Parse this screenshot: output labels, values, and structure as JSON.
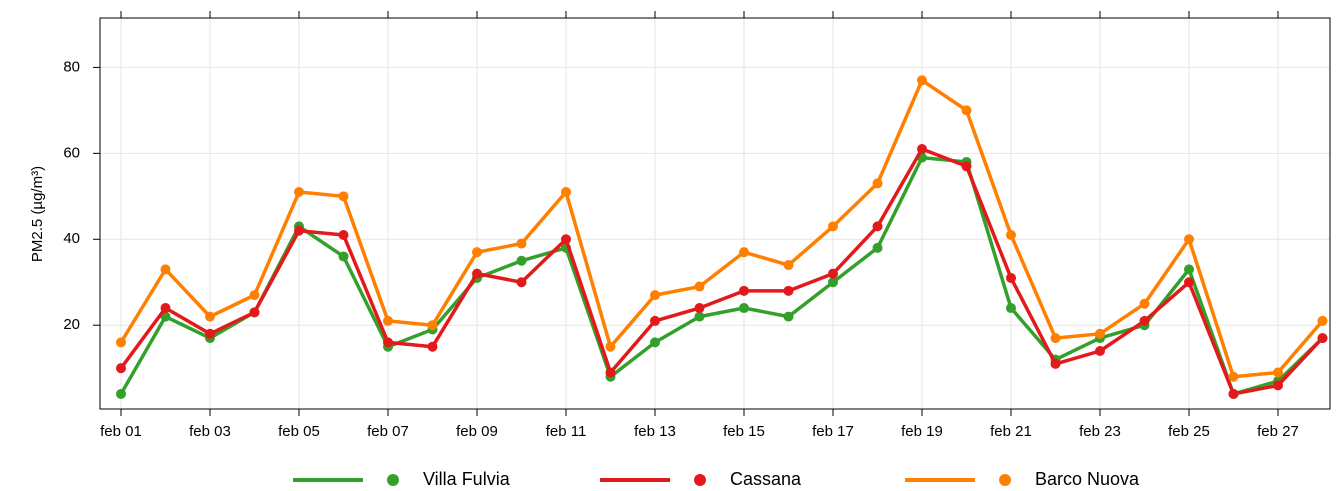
{
  "chart_data": {
    "type": "line",
    "y_label": "PM2.5 (µg/m³)",
    "categories": [
      "feb 01",
      null,
      "feb 03",
      null,
      "feb 05",
      null,
      "feb 07",
      null,
      "feb 09",
      null,
      "feb 11",
      null,
      "feb 13",
      null,
      "feb 15",
      null,
      "feb 17",
      null,
      "feb 19",
      null,
      "feb 21",
      null,
      "feb 23",
      null,
      "feb 25",
      null,
      "feb 27",
      null
    ],
    "series": [
      {
        "name": "Villa Fulvia",
        "color": "#33a02c",
        "values": [
          4,
          22,
          17,
          23,
          43,
          36,
          15,
          19,
          31,
          35,
          38,
          8,
          16,
          22,
          24,
          22,
          30,
          38,
          59,
          58,
          24,
          12,
          17,
          20,
          33,
          4,
          7,
          17
        ]
      },
      {
        "name": "Cassana",
        "color": "#e31a1c",
        "values": [
          10,
          24,
          18,
          23,
          42,
          41,
          16,
          15,
          32,
          30,
          40,
          9,
          21,
          24,
          28,
          28,
          32,
          43,
          61,
          57,
          31,
          11,
          14,
          21,
          30,
          4,
          6,
          17
        ]
      },
      {
        "name": "Barco Nuova",
        "color": "#ff7f00",
        "values": [
          16,
          33,
          22,
          27,
          51,
          50,
          21,
          20,
          37,
          39,
          51,
          15,
          27,
          29,
          37,
          34,
          43,
          53,
          77,
          70,
          41,
          17,
          18,
          25,
          40,
          8,
          9,
          21
        ]
      }
    ],
    "ylim": [
      0.5,
      91.5
    ],
    "yticks": [
      20,
      40,
      60,
      80
    ],
    "grid": true,
    "legend": "bottom"
  }
}
